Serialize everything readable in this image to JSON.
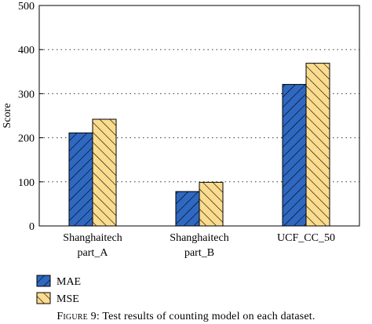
{
  "chart_data": {
    "type": "bar",
    "categories": [
      [
        "Shanghaitech",
        "part_A"
      ],
      [
        "Shanghaitech",
        "part_B"
      ],
      [
        "UCF_CC_50"
      ]
    ],
    "series": [
      {
        "name": "MAE",
        "values": [
          211,
          78,
          321
        ],
        "color": "#2f68c0",
        "pattern": "hatch-forward"
      },
      {
        "name": "MSE",
        "values": [
          242,
          99,
          369
        ],
        "color": "#fbdc8e",
        "pattern": "hatch-backward"
      }
    ],
    "ylabel": "Score",
    "ylim": [
      0,
      500
    ],
    "yticks": [
      0,
      100,
      200,
      300,
      400,
      500
    ],
    "grid": "horizontal-dotted",
    "legend_position": "bottom-left"
  },
  "caption": {
    "figure_label": "Figure 9:",
    "text": "Test results of counting model on each dataset."
  }
}
